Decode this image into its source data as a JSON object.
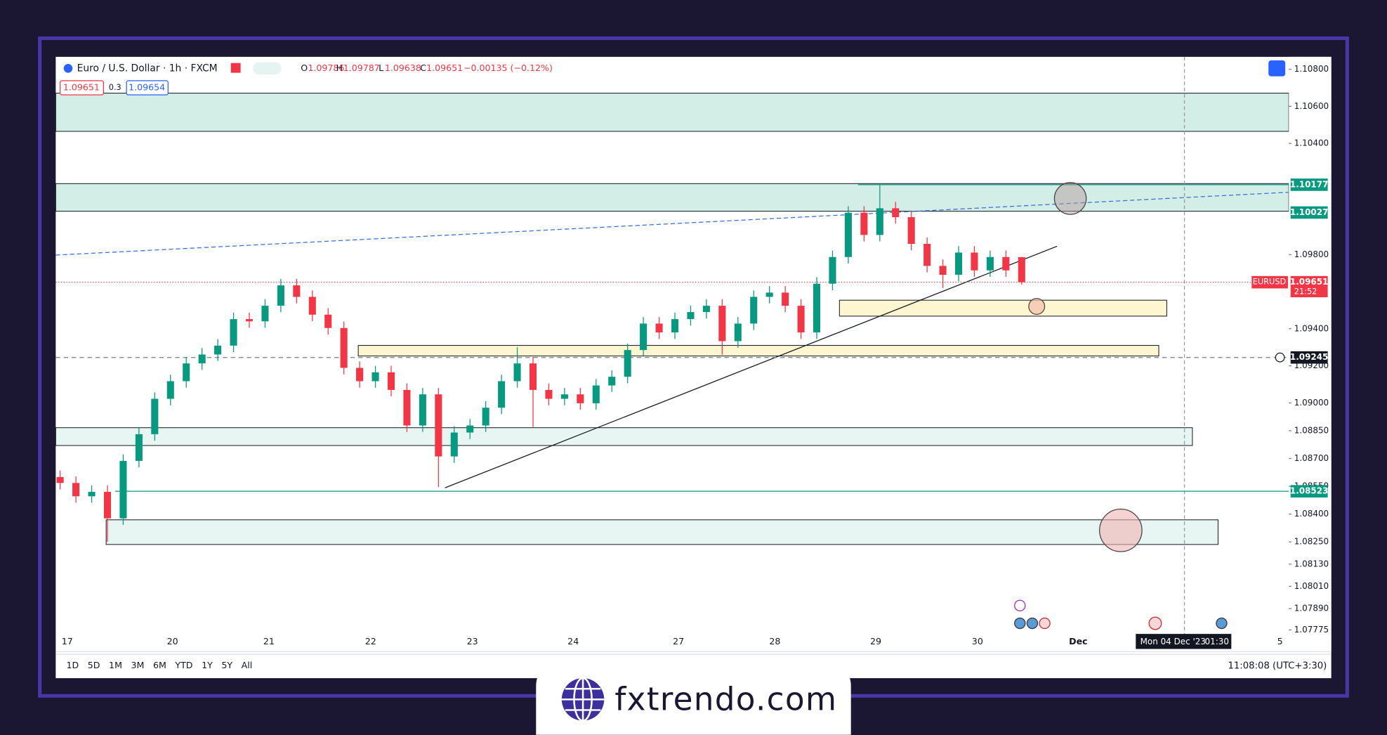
{
  "header": {
    "symbol": "Euro / U.S. Dollar · 1h · FXCM",
    "open_label": "O",
    "open": 1.09786,
    "high_label": "H",
    "high": 1.09787,
    "low_label": "L",
    "low": 1.09638,
    "close_label": "C",
    "close": 1.09651,
    "change": "−0.00135 (−0.12%)",
    "sell": 1.09651,
    "spread": 0.3,
    "buy": 1.09654
  },
  "price_axis": {
    "ylim": [
      1.07658,
      1.10867
    ],
    "ticks": [
      {
        "value": 1.108,
        "label": "1.10800"
      },
      {
        "value": 1.106,
        "label": "1.10600"
      },
      {
        "value": 1.104,
        "label": "1.10400"
      },
      {
        "value": 1.098,
        "label": "1.09800"
      },
      {
        "value": 1.094,
        "label": "1.09400"
      },
      {
        "value": 1.092,
        "label": "1.09200"
      },
      {
        "value": 1.09,
        "label": "1.09000"
      },
      {
        "value": 1.0885,
        "label": "1.08850"
      },
      {
        "value": 1.087,
        "label": "1.08700"
      },
      {
        "value": 1.0855,
        "label": "1.08550"
      },
      {
        "value": 1.084,
        "label": "1.08400"
      },
      {
        "value": 1.0825,
        "label": "1.08250"
      },
      {
        "value": 1.0813,
        "label": "1.08130"
      },
      {
        "value": 1.0801,
        "label": "1.08010"
      },
      {
        "value": 1.0789,
        "label": "1.07890"
      },
      {
        "value": 1.07775,
        "label": "1.07775"
      }
    ]
  },
  "time_axis": {
    "labels": [
      "17",
      "20",
      "21",
      "22",
      "23",
      "24",
      "27",
      "28",
      "29",
      "30",
      "Dec",
      "Mon 04 Dec '23",
      "01:30",
      "5"
    ]
  },
  "candles": {
    "open": [
      1.086,
      1.08568,
      1.08496,
      1.0852,
      1.08377,
      1.08687,
      1.08831,
      1.09022,
      1.09117,
      1.09213,
      1.09261,
      1.09309,
      1.09452,
      1.0944,
      1.09524,
      1.09634,
      1.09572,
      1.09476,
      1.09404,
      1.09189,
      1.09117,
      1.09165,
      1.0907,
      1.08878,
      1.09046,
      1.08711,
      1.0884,
      1.08878,
      1.08974,
      1.09117,
      1.09213,
      1.0907,
      1.09022,
      1.09046,
      1.08998,
      1.09094,
      1.09141,
      1.09285,
      1.09428,
      1.0938,
      1.09452,
      1.0949,
      1.09524,
      1.09333,
      1.09428,
      1.09572,
      1.09595,
      1.09524,
      1.0938,
      1.09643,
      1.09787,
      1.10026,
      1.09906,
      1.1005,
      1.10002,
      1.09858,
      1.09739,
      1.09691,
      1.09811,
      1.09715,
      1.09787,
      1.09786
    ],
    "high": [
      1.08635,
      1.08603,
      1.08555,
      1.08555,
      1.08722,
      1.08866,
      1.09057,
      1.09152,
      1.09248,
      1.09296,
      1.09344,
      1.09487,
      1.09487,
      1.09559,
      1.09669,
      1.09669,
      1.09607,
      1.09511,
      1.09439,
      1.09224,
      1.092,
      1.092,
      1.09105,
      1.09081,
      1.09081,
      1.08875,
      1.08913,
      1.09009,
      1.09152,
      1.093,
      1.09248,
      1.09105,
      1.09081,
      1.09081,
      1.09129,
      1.09176,
      1.0932,
      1.09463,
      1.09463,
      1.09487,
      1.09525,
      1.09559,
      1.09559,
      1.09463,
      1.09607,
      1.0963,
      1.0963,
      1.09559,
      1.09678,
      1.09822,
      1.10061,
      1.10061,
      1.10177,
      1.10085,
      1.10037,
      1.09893,
      1.09774,
      1.09846,
      1.09846,
      1.09822,
      1.09822,
      1.09787
    ],
    "low": [
      1.08533,
      1.08461,
      1.08461,
      1.0825,
      1.08342,
      1.08652,
      1.08796,
      1.08987,
      1.09082,
      1.09178,
      1.09226,
      1.09274,
      1.09405,
      1.09405,
      1.09489,
      1.09537,
      1.09441,
      1.09369,
      1.09154,
      1.09082,
      1.09082,
      1.09035,
      1.08843,
      1.08843,
      1.08546,
      1.08676,
      1.08805,
      1.08843,
      1.08939,
      1.09082,
      1.0887,
      1.08987,
      1.08987,
      1.08963,
      1.08963,
      1.09059,
      1.09106,
      1.0925,
      1.09345,
      1.09345,
      1.09417,
      1.09455,
      1.0926,
      1.09298,
      1.09393,
      1.09537,
      1.09489,
      1.09345,
      1.09345,
      1.09608,
      1.09752,
      1.09871,
      1.09871,
      1.09967,
      1.09823,
      1.09704,
      1.0962,
      1.09656,
      1.0968,
      1.0968,
      1.0968,
      1.09638
    ],
    "close": [
      1.08568,
      1.08496,
      1.0852,
      1.08377,
      1.08687,
      1.08831,
      1.09022,
      1.09117,
      1.09213,
      1.09261,
      1.09309,
      1.09452,
      1.0944,
      1.09524,
      1.09634,
      1.09572,
      1.09476,
      1.09404,
      1.09189,
      1.09117,
      1.09165,
      1.0907,
      1.08878,
      1.09046,
      1.08711,
      1.0884,
      1.08878,
      1.08974,
      1.09117,
      1.09213,
      1.0907,
      1.09022,
      1.09046,
      1.08998,
      1.09094,
      1.09141,
      1.09285,
      1.09428,
      1.0938,
      1.09452,
      1.0949,
      1.09524,
      1.09333,
      1.09428,
      1.09572,
      1.09595,
      1.09524,
      1.0938,
      1.09643,
      1.09787,
      1.10026,
      1.09906,
      1.1005,
      1.10002,
      1.09858,
      1.09739,
      1.09691,
      1.09811,
      1.09715,
      1.09787,
      1.09715,
      1.09651
    ]
  },
  "zones": [
    {
      "top": 1.10671,
      "bottom": 1.10465
    },
    {
      "top": 1.10183,
      "bottom": 1.10034
    },
    {
      "top": 1.09554,
      "bottom": 1.09468
    },
    {
      "top": 1.0931,
      "bottom": 1.09253
    },
    {
      "top": 1.08866,
      "bottom": 1.0877
    },
    {
      "top": 1.08369,
      "bottom": 1.08236
    }
  ],
  "levels": [
    {
      "value": 1.10177,
      "color": "#089981"
    },
    {
      "value": 1.10027,
      "color": "#089981"
    },
    {
      "value": 1.09651,
      "color": "#f23645",
      "name": "EURUSD",
      "countdown": "21:52"
    },
    {
      "value": 1.09245,
      "color": "#131722"
    },
    {
      "value": 1.08523,
      "color": "#089981"
    }
  ],
  "toolbar": {
    "ranges": [
      "1D",
      "5D",
      "1M",
      "3M",
      "6M",
      "YTD",
      "1Y",
      "5Y",
      "All"
    ],
    "clock": "11:08:08 (UTC+3:30)"
  },
  "brand": "fxtrendo.com"
}
